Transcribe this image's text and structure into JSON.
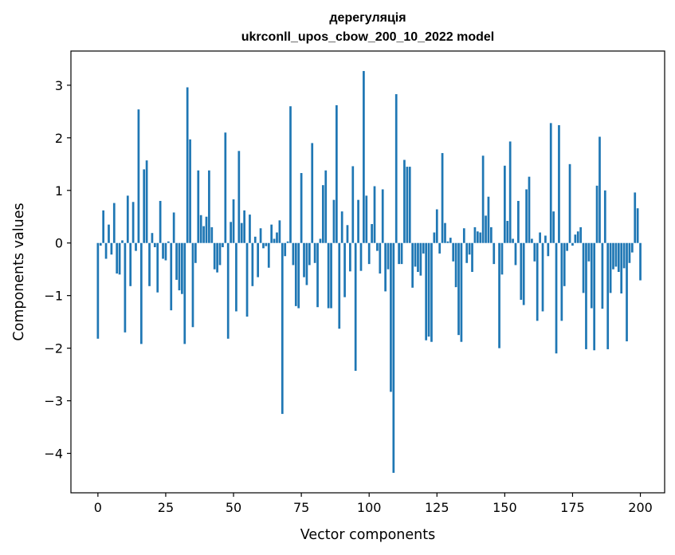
{
  "chart_data": {
    "type": "bar",
    "title": "дерегуляція",
    "subtitle": "ukrconll_upos_cbow_200_10_2022 model",
    "xlabel": "Vector components",
    "ylabel": "Components values",
    "xlim": [
      -9.95,
      208.95
    ],
    "ylim": [
      -4.75,
      3.65
    ],
    "x_ticks": [
      0,
      25,
      50,
      75,
      100,
      125,
      150,
      175,
      200
    ],
    "y_ticks": [
      -4,
      -3,
      -2,
      -1,
      0,
      1,
      2,
      3
    ],
    "bar_color": "#1f77b4",
    "grid": false,
    "values": [
      -1.82,
      -0.05,
      0.62,
      -0.3,
      0.35,
      -0.22,
      0.76,
      -0.58,
      -0.6,
      0.05,
      -1.7,
      0.9,
      -0.82,
      0.78,
      -0.15,
      2.54,
      -1.92,
      1.4,
      1.57,
      -0.82,
      0.19,
      -0.08,
      -0.94,
      0.8,
      -0.3,
      -0.33,
      0.03,
      -1.28,
      0.58,
      -0.7,
      -0.9,
      -0.97,
      -1.92,
      2.96,
      1.97,
      -1.6,
      -0.38,
      1.38,
      0.53,
      0.32,
      0.5,
      1.38,
      0.3,
      -0.5,
      -0.56,
      -0.42,
      -0.08,
      2.1,
      -1.82,
      0.4,
      0.83,
      -1.3,
      1.75,
      0.38,
      0.62,
      -1.4,
      0.54,
      -0.82,
      0.12,
      -0.65,
      0.28,
      -0.1,
      -0.06,
      -0.47,
      0.35,
      0.08,
      0.2,
      0.43,
      -3.25,
      -0.25,
      0.03,
      2.6,
      -0.42,
      -1.2,
      -1.24,
      1.33,
      -0.65,
      -0.8,
      -0.42,
      1.9,
      -0.38,
      -1.22,
      0.08,
      1.1,
      1.38,
      -1.24,
      -1.24,
      0.82,
      2.62,
      -1.63,
      0.6,
      -1.03,
      0.34,
      -0.54,
      1.46,
      -2.43,
      0.82,
      -0.53,
      3.27,
      0.9,
      -0.4,
      0.36,
      1.08,
      -0.15,
      -0.58,
      1.02,
      -0.92,
      -0.5,
      -2.83,
      -4.37,
      2.83,
      -0.4,
      -0.4,
      1.58,
      1.45,
      1.45,
      -0.85,
      -0.45,
      -0.55,
      -0.62,
      -0.2,
      -1.85,
      -1.78,
      -1.88,
      0.2,
      0.64,
      -0.2,
      1.71,
      0.38,
      0.03,
      0.1,
      -0.35,
      -0.84,
      -1.75,
      -1.88,
      0.28,
      -0.38,
      -0.22,
      -0.55,
      0.3,
      0.22,
      0.2,
      1.66,
      0.52,
      0.88,
      0.3,
      -0.4,
      0.0,
      -2.0,
      -0.6,
      1.47,
      0.42,
      1.93,
      0.08,
      -0.42,
      0.8,
      -1.08,
      -1.18,
      1.02,
      1.26,
      0.08,
      -0.35,
      -1.48,
      0.2,
      -1.3,
      0.14,
      -0.25,
      2.28,
      0.6,
      -2.1,
      2.24,
      -1.48,
      -0.82,
      -0.15,
      1.5,
      -0.05,
      0.16,
      0.22,
      0.3,
      -0.95,
      -2.02,
      -0.35,
      -1.24,
      -2.04,
      1.09,
      2.02,
      -1.25,
      1.0,
      -2.02,
      -0.95,
      -0.5,
      -0.45,
      -0.55,
      -0.96,
      -0.48,
      -1.87,
      -0.38,
      -0.18,
      0.96,
      0.66,
      -0.71
    ]
  }
}
